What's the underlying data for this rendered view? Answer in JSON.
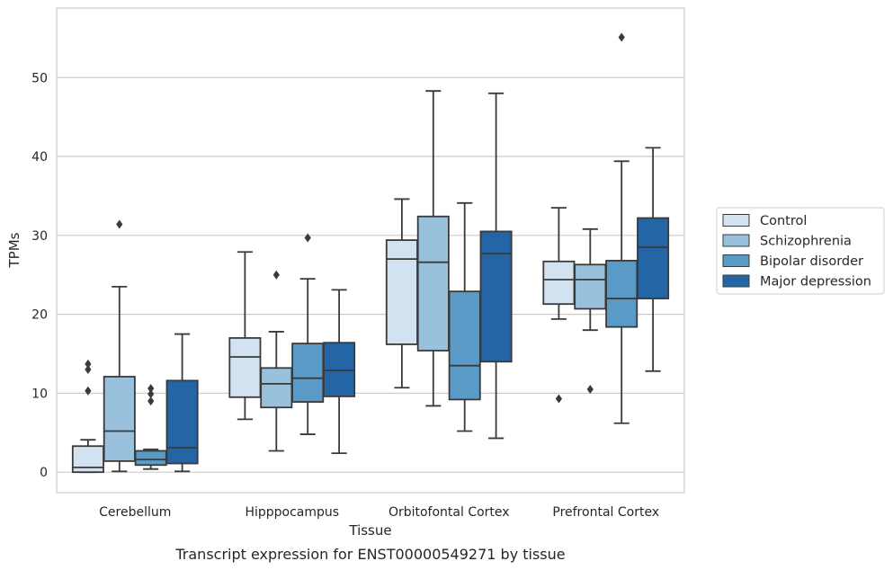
{
  "caption": "Transcript expression for ENST00000549271 by tissue",
  "chart_data": {
    "type": "box",
    "xlabel": "Tissue",
    "ylabel": "TPMs",
    "ylim": [
      -2.6,
      58.8
    ],
    "yticks": [
      0,
      10,
      20,
      30,
      40,
      50
    ],
    "grid": "horizontal",
    "legend_position": "right",
    "categories": [
      "Cerebellum",
      "Hipppocampus",
      "Orbitofontal Cortex",
      "Prefrontal Cortex"
    ],
    "series": [
      {
        "name": "Control",
        "color": "#d3e2f0",
        "boxes": [
          {
            "whislo": 0.0,
            "q1": 0.0,
            "med": 0.6,
            "q3": 3.3,
            "whishi": 4.1,
            "fliers": [
              13.7,
              13.0,
              10.3
            ]
          },
          {
            "whislo": 6.7,
            "q1": 9.5,
            "med": 14.6,
            "q3": 17.0,
            "whishi": 27.9,
            "fliers": []
          },
          {
            "whislo": 10.7,
            "q1": 16.2,
            "med": 27.0,
            "q3": 29.4,
            "whishi": 34.6,
            "fliers": []
          },
          {
            "whislo": 19.4,
            "q1": 21.3,
            "med": 24.4,
            "q3": 26.7,
            "whishi": 33.5,
            "fliers": [
              9.3
            ]
          }
        ]
      },
      {
        "name": "Schizophrenia",
        "color": "#9ac1dc",
        "boxes": [
          {
            "whislo": 0.1,
            "q1": 1.4,
            "med": 5.2,
            "q3": 12.1,
            "whishi": 23.5,
            "fliers": [
              31.4
            ]
          },
          {
            "whislo": 2.7,
            "q1": 8.2,
            "med": 11.2,
            "q3": 13.2,
            "whishi": 17.8,
            "fliers": [
              25.0
            ]
          },
          {
            "whislo": 8.4,
            "q1": 15.4,
            "med": 26.6,
            "q3": 32.4,
            "whishi": 48.3,
            "fliers": []
          },
          {
            "whislo": 18.0,
            "q1": 20.7,
            "med": 24.4,
            "q3": 26.3,
            "whishi": 30.8,
            "fliers": [
              10.5
            ]
          }
        ]
      },
      {
        "name": "Bipolar disorder",
        "color": "#5a9ac6",
        "boxes": [
          {
            "whislo": 0.4,
            "q1": 0.9,
            "med": 1.6,
            "q3": 2.7,
            "whishi": 2.9,
            "fliers": [
              10.6,
              9.9,
              9.0
            ]
          },
          {
            "whislo": 4.8,
            "q1": 8.9,
            "med": 11.9,
            "q3": 16.3,
            "whishi": 24.5,
            "fliers": [
              29.7
            ]
          },
          {
            "whislo": 5.2,
            "q1": 9.2,
            "med": 13.5,
            "q3": 22.9,
            "whishi": 34.1,
            "fliers": []
          },
          {
            "whislo": 6.2,
            "q1": 18.4,
            "med": 22.0,
            "q3": 26.8,
            "whishi": 39.4,
            "fliers": [
              55.1
            ]
          }
        ]
      },
      {
        "name": "Major depression",
        "color": "#2465a5",
        "boxes": [
          {
            "whislo": 0.1,
            "q1": 1.1,
            "med": 3.1,
            "q3": 11.6,
            "whishi": 17.5,
            "fliers": []
          },
          {
            "whislo": 2.4,
            "q1": 9.6,
            "med": 12.9,
            "q3": 16.4,
            "whishi": 23.1,
            "fliers": []
          },
          {
            "whislo": 4.3,
            "q1": 14.0,
            "med": 27.7,
            "q3": 30.5,
            "whishi": 48.0,
            "fliers": []
          },
          {
            "whislo": 12.8,
            "q1": 22.0,
            "med": 28.5,
            "q3": 32.2,
            "whishi": 41.1,
            "fliers": []
          }
        ]
      }
    ]
  }
}
